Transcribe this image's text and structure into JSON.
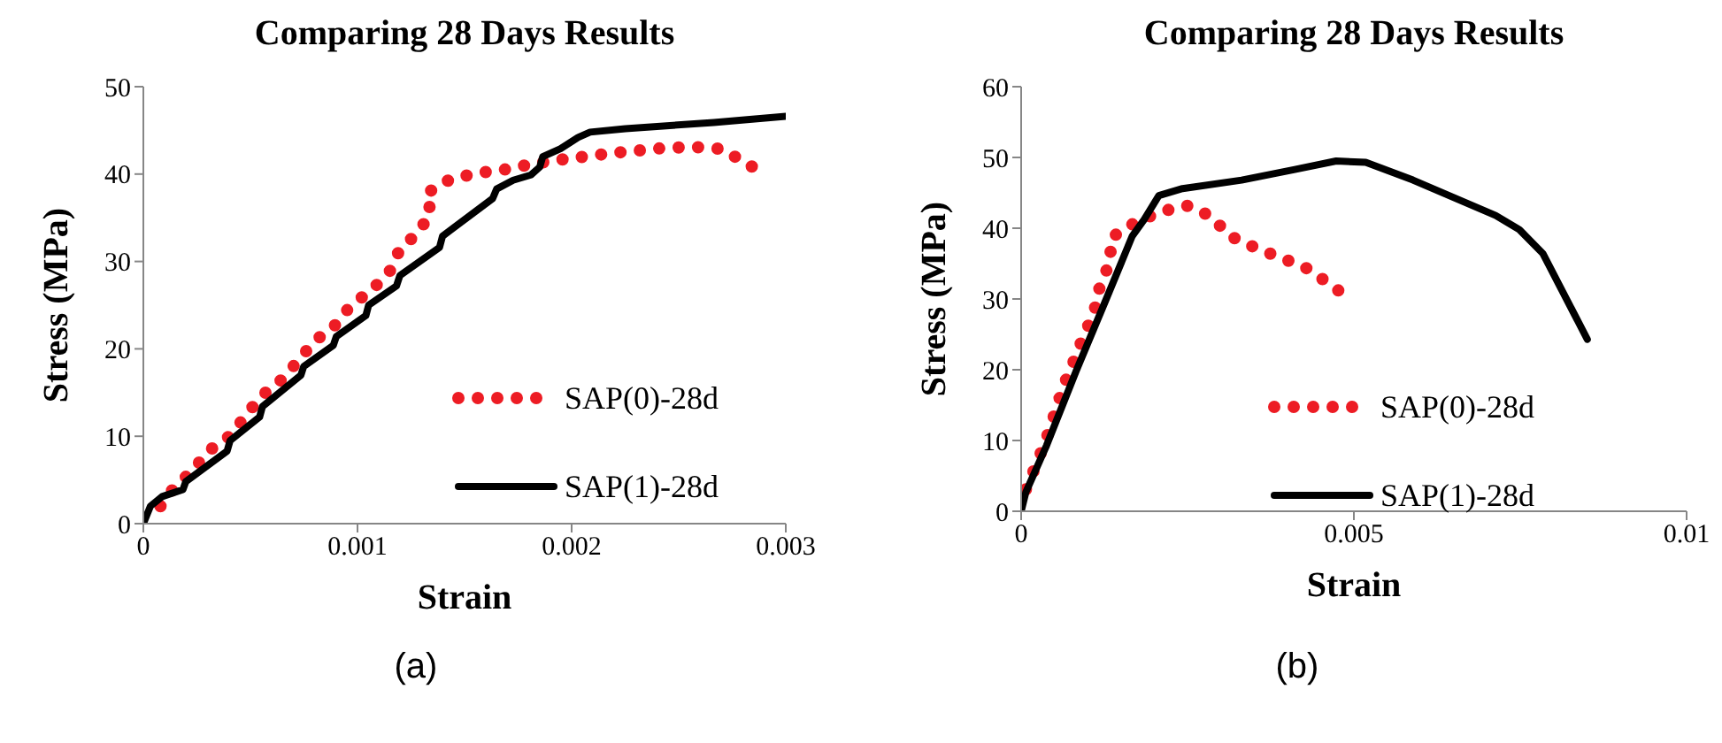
{
  "chart_data": [
    {
      "type": "line",
      "title": "Comparing 28 Days Results",
      "xlabel": "Strain",
      "ylabel": "Stress (MPa)",
      "xlim": [
        0,
        0.003
      ],
      "xticks": [
        0,
        0.001,
        0.002,
        0.003
      ],
      "ylim": [
        0,
        50
      ],
      "yticks": [
        0,
        10,
        20,
        30,
        40,
        50
      ],
      "grid": false,
      "legend": "right",
      "marker": "none",
      "annotations": [
        "(a)"
      ],
      "series": [
        {
          "name": "SAP(0)-28d",
          "color": "#ed1c24",
          "line_style": "dotted",
          "x": [
            8e-05,
            0.000143,
            0.000231,
            0.000303,
            0.000408,
            0.000479,
            0.000551,
            0.000647,
            0.000722,
            0.000796,
            0.000895,
            0.000967,
            0.001069,
            0.001149,
            0.001198,
            0.001287,
            0.001342,
            0.001322,
            0.001433,
            0.001556,
            0.001683,
            0.001804,
            0.001934,
            0.002063,
            0.002187,
            0.002314,
            0.002438,
            0.002565,
            0.002694,
            0.002807,
            0.002917
          ],
          "values": [
            2.0,
            4.1,
            6.1,
            8.3,
            10.1,
            12.4,
            14.6,
            16.5,
            18.6,
            20.8,
            22.7,
            24.9,
            26.8,
            28.8,
            31.4,
            33.4,
            35.6,
            37.8,
            39.4,
            40.1,
            40.5,
            41.1,
            41.6,
            42.0,
            42.4,
            42.7,
            43.0,
            43.1,
            42.9,
            41.4,
            39.7
          ]
        },
        {
          "name": "SAP(1)-28d",
          "color": "#000000",
          "line_style": "solid",
          "x": [
            0,
            3.3e-05,
            8.8e-05,
            0.000185,
            0.000198,
            0.000391,
            0.000405,
            0.000543,
            0.000556,
            0.000736,
            0.000749,
            0.000887,
            0.000901,
            0.001039,
            0.001052,
            0.001182,
            0.001198,
            0.001383,
            0.001397,
            0.001631,
            0.00165,
            0.001727,
            0.00181,
            0.001851,
            0.001865,
            0.001948,
            0.00203,
            0.002086,
            0.002251,
            0.002664,
            0.003
          ],
          "values": [
            0,
            2.0,
            3.1,
            3.9,
            4.8,
            8.3,
            9.5,
            12.2,
            13.4,
            17.0,
            18.0,
            20.4,
            21.4,
            23.8,
            25.0,
            27.2,
            28.4,
            31.6,
            32.9,
            37.2,
            38.3,
            39.3,
            39.9,
            40.8,
            42.0,
            42.9,
            44.2,
            44.8,
            45.2,
            45.9,
            46.6
          ]
        }
      ]
    },
    {
      "type": "line",
      "title": "Comparing 28 Days Results",
      "xlabel": "Strain",
      "ylabel": "Stress (MPa)",
      "xlim": [
        0,
        0.01
      ],
      "xticks": [
        0,
        0.005,
        0.01
      ],
      "ylim": [
        0,
        60
      ],
      "yticks": [
        0,
        10,
        20,
        30,
        40,
        50,
        60
      ],
      "grid": false,
      "legend": "right",
      "marker": "none",
      "annotations": [
        "(b)"
      ],
      "series": [
        {
          "name": "SAP(0)-28d",
          "color": "#ed1c24",
          "line_style": "dotted",
          "x": [
            7.1e-05,
            0.000249,
            0.000382,
            0.000515,
            0.000631,
            0.000782,
            0.000933,
            0.001092,
            0.001181,
            0.001332,
            0.001359,
            0.001696,
            0.002087,
            0.002487,
            0.002851,
            0.003135,
            0.003508,
            0.003881,
            0.004263,
            0.004609,
            0.004938
          ],
          "values": [
            3.1,
            7.1,
            10.4,
            14.1,
            17.6,
            21.0,
            24.6,
            28.0,
            31.7,
            35.2,
            38.7,
            40.7,
            42.3,
            43.2,
            41.7,
            38.9,
            37.3,
            35.9,
            34.5,
            32.3,
            30.0
          ]
        },
        {
          "name": "SAP(1)-28d",
          "color": "#000000",
          "line_style": "solid",
          "x": [
            0,
            7.1e-05,
            0.000382,
            0.000826,
            0.00127,
            0.00167,
            0.001847,
            0.002069,
            0.002425,
            0.003313,
            0.004112,
            0.004734,
            0.005178,
            0.005888,
            0.007131,
            0.007487,
            0.007842,
            0.008508
          ],
          "values": [
            0,
            2.7,
            9.3,
            19.8,
            29.8,
            38.9,
            41.2,
            44.6,
            45.6,
            46.8,
            48.3,
            49.5,
            49.3,
            46.8,
            41.8,
            39.8,
            36.4,
            24.3
          ]
        }
      ]
    }
  ]
}
